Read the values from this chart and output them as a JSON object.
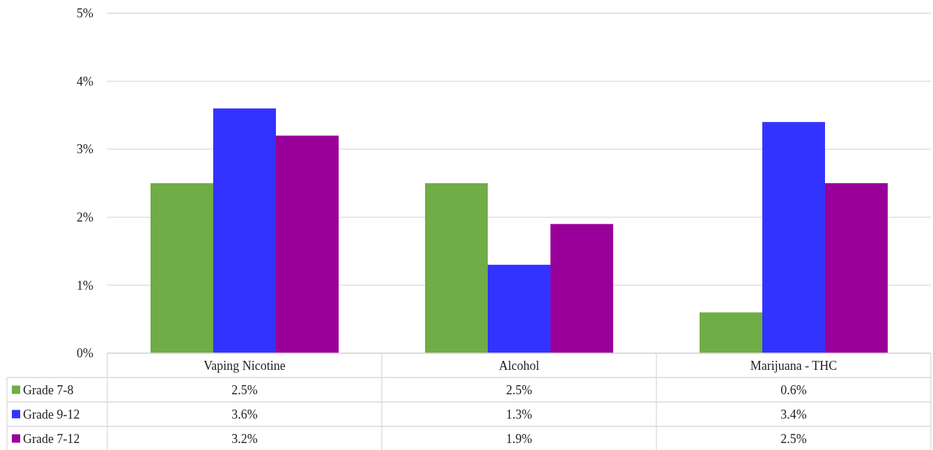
{
  "chart_data": {
    "type": "bar",
    "categories": [
      "Vaping Nicotine",
      "Alcohol",
      "Marijuana - THC"
    ],
    "series": [
      {
        "name": "Grade 7-8",
        "color": "#70ad47",
        "values": [
          2.5,
          2.5,
          0.6
        ],
        "value_labels": [
          "2.5%",
          "2.5%",
          "0.6%"
        ]
      },
      {
        "name": "Grade 9-12",
        "color": "#3333ff",
        "values": [
          3.6,
          1.3,
          3.4
        ],
        "value_labels": [
          "3.6%",
          "1.3%",
          "3.4%"
        ]
      },
      {
        "name": "Grade 7-12",
        "color": "#990099",
        "values": [
          3.2,
          1.9,
          2.5
        ],
        "value_labels": [
          "3.2%",
          "1.9%",
          "2.5%"
        ]
      }
    ],
    "ylim": [
      0,
      5
    ],
    "yticks": [
      {
        "value": 0,
        "label": "0%"
      },
      {
        "value": 1,
        "label": "1%"
      },
      {
        "value": 2,
        "label": "2%"
      },
      {
        "value": 3,
        "label": "3%"
      },
      {
        "value": 4,
        "label": "4%"
      },
      {
        "value": 5,
        "label": "5%"
      }
    ],
    "grid": "y",
    "legend": "bottom"
  }
}
